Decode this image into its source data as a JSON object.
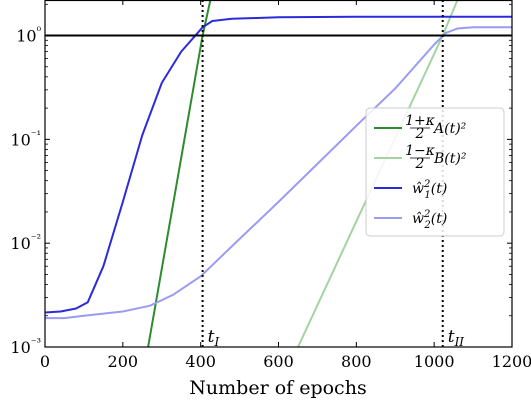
{
  "chart_data": {
    "type": "line",
    "xlabel": "Number of epochs",
    "ylabel": "",
    "xscale": "linear",
    "yscale": "log",
    "xlim": [
      0,
      1200
    ],
    "ylim": [
      0.001,
      2.2
    ],
    "xticks": [
      0,
      200,
      400,
      600,
      800,
      1000,
      1200
    ],
    "xtick_labels": [
      "0",
      "200",
      "400",
      "600",
      "800",
      "1000",
      "1200"
    ],
    "yticks": [
      0.001,
      0.01,
      0.1,
      1
    ],
    "ytick_labels": [
      "10⁻³",
      "10⁻²",
      "10⁻¹",
      "10⁰"
    ],
    "grid": false,
    "legend_position": "right",
    "hline": {
      "y": 1,
      "color": "#000000"
    },
    "vlines": [
      {
        "x": 405,
        "label": "t_I",
        "label_text": "t",
        "label_sub": "I",
        "style": "dotted"
      },
      {
        "x": 1022,
        "label": "t_II",
        "label_text": "t",
        "label_sub": "II",
        "style": "dotted"
      }
    ],
    "series": [
      {
        "name": "(1+κ)/2 A(t)²",
        "legend_main": "A(t)²",
        "legend_num": "1+κ",
        "legend_den": "2",
        "color": "#2e8b2e",
        "points": [
          [
            265,
            0.001
          ],
          [
            405,
            1.0
          ],
          [
            425,
            2.2
          ]
        ]
      },
      {
        "name": "(1−κ)/2 B(t)²",
        "legend_main": "B(t)²",
        "legend_num": "1−κ",
        "legend_den": "2",
        "color": "#a3d4a0",
        "points": [
          [
            650,
            0.001
          ],
          [
            1022,
            1.0
          ],
          [
            1060,
            2.2
          ]
        ]
      },
      {
        "name": "ŵ₁²(t)",
        "legend_main": "ŵ",
        "legend_sub": "1",
        "legend_sup": "2",
        "legend_tail": "(t)",
        "color": "#2b2bdb",
        "points": [
          [
            0,
            0.00215
          ],
          [
            40,
            0.0022
          ],
          [
            80,
            0.00235
          ],
          [
            110,
            0.0027
          ],
          [
            150,
            0.006
          ],
          [
            200,
            0.025
          ],
          [
            250,
            0.11
          ],
          [
            300,
            0.35
          ],
          [
            350,
            0.7
          ],
          [
            405,
            1.2
          ],
          [
            430,
            1.38
          ],
          [
            480,
            1.45
          ],
          [
            600,
            1.5
          ],
          [
            800,
            1.52
          ],
          [
            1000,
            1.52
          ],
          [
            1200,
            1.52
          ]
        ]
      },
      {
        "name": "ŵ₂²(t)",
        "legend_main": "ŵ",
        "legend_sub": "2",
        "legend_sup": "2",
        "legend_tail": "(t)",
        "color": "#9b9bf2",
        "points": [
          [
            0,
            0.0019
          ],
          [
            50,
            0.0019
          ],
          [
            100,
            0.002
          ],
          [
            200,
            0.0022
          ],
          [
            270,
            0.0025
          ],
          [
            330,
            0.0032
          ],
          [
            400,
            0.0048
          ],
          [
            500,
            0.011
          ],
          [
            600,
            0.025
          ],
          [
            700,
            0.058
          ],
          [
            800,
            0.135
          ],
          [
            900,
            0.31
          ],
          [
            1000,
            0.82
          ],
          [
            1030,
            1.06
          ],
          [
            1060,
            1.17
          ],
          [
            1100,
            1.2
          ],
          [
            1200,
            1.2
          ]
        ]
      }
    ]
  }
}
